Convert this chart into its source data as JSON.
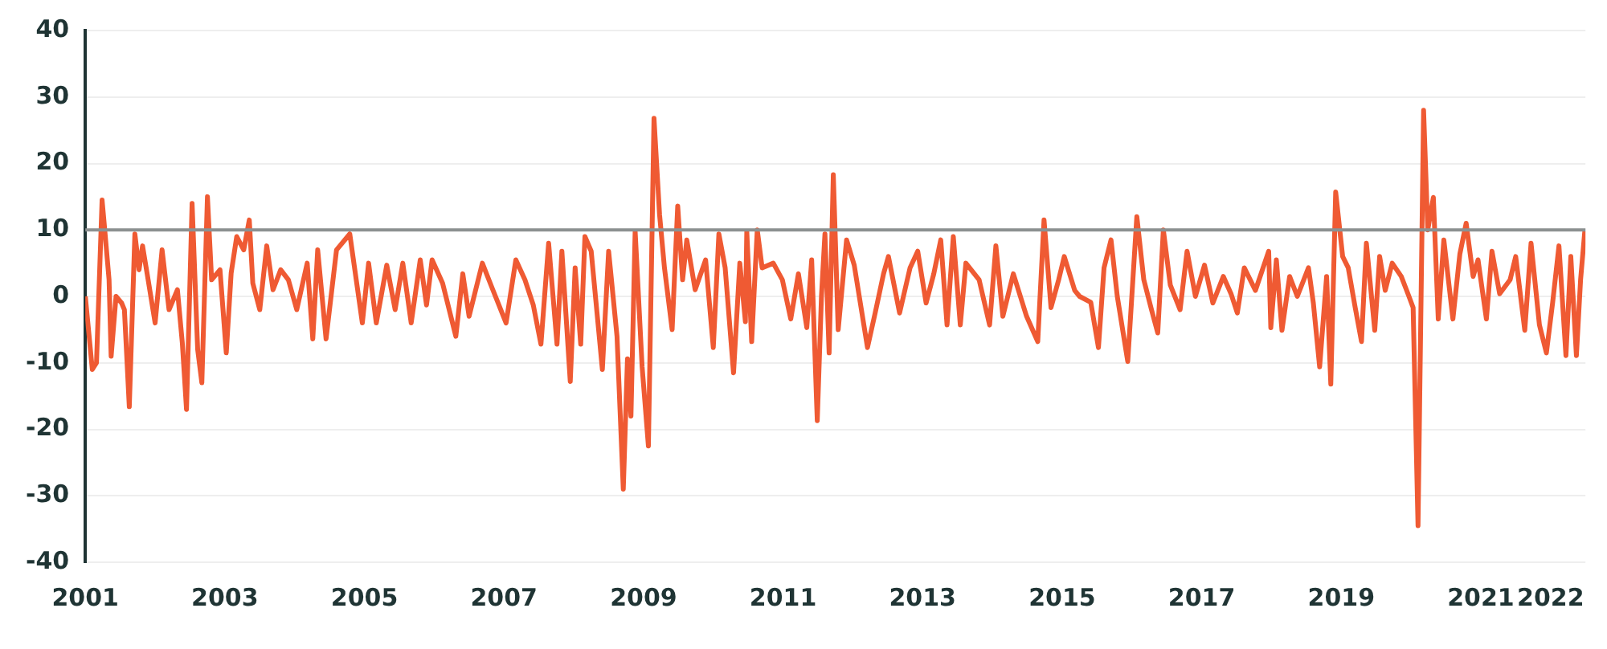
{
  "chart_data": {
    "type": "line",
    "series": [
      {
        "color": "#ef5a33",
        "x": [
          2001.0,
          2001.1,
          2001.16,
          2001.24,
          2001.27,
          2001.34,
          2001.37,
          2001.44,
          2001.52,
          2001.56,
          2001.63,
          2001.71,
          2001.77,
          2001.82,
          2001.9,
          2002.0,
          2002.1,
          2002.2,
          2002.32,
          2002.39,
          2002.45,
          2002.53,
          2002.61,
          2002.67,
          2002.75,
          2002.81,
          2002.93,
          2003.02,
          2003.09,
          2003.17,
          2003.27,
          2003.35,
          2003.4,
          2003.5,
          2003.6,
          2003.69,
          2003.8,
          2003.91,
          2004.03,
          2004.18,
          2004.26,
          2004.33,
          2004.45,
          2004.6,
          2004.79,
          2004.97,
          2005.06,
          2005.17,
          2005.32,
          2005.44,
          2005.55,
          2005.67,
          2005.8,
          2005.89,
          2005.97,
          2006.12,
          2006.31,
          2006.41,
          2006.5,
          2006.69,
          2006.84,
          2007.03,
          2007.17,
          2007.3,
          2007.42,
          2007.53,
          2007.64,
          2007.76,
          2007.83,
          2007.95,
          2008.02,
          2008.1,
          2008.16,
          2008.25,
          2008.41,
          2008.5,
          2008.62,
          2008.71,
          2008.77,
          2008.82,
          2008.88,
          2008.98,
          2009.07,
          2009.15,
          2009.23,
          2009.3,
          2009.41,
          2009.49,
          2009.56,
          2009.62,
          2009.74,
          2009.89,
          2010.0,
          2010.08,
          2010.17,
          2010.29,
          2010.38,
          2010.46,
          2010.48,
          2010.55,
          2010.63,
          2010.7,
          2010.86,
          2010.99,
          2011.11,
          2011.22,
          2011.34,
          2011.41,
          2011.49,
          2011.55,
          2011.6,
          2011.66,
          2011.72,
          2011.79,
          2011.91,
          2012.02,
          2012.21,
          2012.32,
          2012.44,
          2012.51,
          2012.67,
          2012.82,
          2012.93,
          2013.05,
          2013.16,
          2013.26,
          2013.35,
          2013.44,
          2013.54,
          2013.62,
          2013.81,
          2013.96,
          2014.05,
          2014.15,
          2014.3,
          2014.49,
          2014.65,
          2014.74,
          2014.84,
          2014.95,
          2015.03,
          2015.18,
          2015.25,
          2015.41,
          2015.52,
          2015.6,
          2015.7,
          2015.79,
          2015.94,
          2016.07,
          2016.17,
          2016.28,
          2016.37,
          2016.45,
          2016.55,
          2016.69,
          2016.79,
          2016.91,
          2017.04,
          2017.16,
          2017.31,
          2017.42,
          2017.51,
          2017.61,
          2017.77,
          2017.96,
          2017.99,
          2018.07,
          2018.15,
          2018.26,
          2018.37,
          2018.53,
          2018.6,
          2018.69,
          2018.79,
          2018.85,
          2018.92,
          2019.02,
          2019.1,
          2019.2,
          2019.29,
          2019.36,
          2019.48,
          2019.55,
          2019.63,
          2019.73,
          2019.86,
          2019.97,
          2020.03,
          2020.1,
          2020.18,
          2020.24,
          2020.32,
          2020.39,
          2020.47,
          2020.6,
          2020.7,
          2020.79,
          2020.89,
          2020.96,
          2021.08,
          2021.16,
          2021.27,
          2021.42,
          2021.5,
          2021.63,
          2021.72,
          2021.84,
          2021.94,
          2022.03,
          2022.12,
          2022.22,
          2022.29,
          2022.37,
          2022.43,
          2022.49
        ],
        "values": [
          0,
          -11,
          -10,
          14.5,
          11,
          2.5,
          -9,
          0,
          -1,
          -2,
          -16.6,
          9.4,
          4,
          7.6,
          2.5,
          -4,
          7,
          -2,
          1,
          -7,
          -17,
          14,
          -8,
          -13,
          15,
          2.5,
          4,
          -8.5,
          3.5,
          9,
          7,
          11.5,
          2,
          -2,
          7.6,
          1,
          4,
          2.5,
          -2,
          5,
          -6.4,
          7,
          -6.4,
          7,
          9.4,
          -4,
          5,
          -4,
          4.7,
          -2,
          5,
          -4,
          5.5,
          -1.3,
          5.5,
          2,
          -6,
          3.4,
          -3,
          5,
          1,
          -4,
          5.5,
          2.5,
          -1.3,
          -7.2,
          8,
          -7.2,
          6.8,
          -12.8,
          4.3,
          -7.2,
          9,
          6.8,
          -11,
          6.8,
          -6,
          -29,
          -9.4,
          -18,
          9.8,
          -10.6,
          -22.5,
          26.8,
          12.3,
          4.3,
          -5,
          13.6,
          2.5,
          8.5,
          1,
          5.5,
          -7.7,
          9.4,
          4.3,
          -11.5,
          5,
          -3.8,
          9.8,
          -6.8,
          10,
          4.3,
          5,
          2.5,
          -3.4,
          3.4,
          -4.7,
          5.5,
          -18.7,
          0,
          9.4,
          -8.5,
          18.3,
          -5,
          8.5,
          4.7,
          -7.7,
          -2.5,
          3.4,
          6,
          -2.5,
          4.3,
          6.8,
          -1,
          3.4,
          8.5,
          -4.3,
          9,
          -4.3,
          5,
          2.5,
          -4.3,
          7.6,
          -3,
          3.4,
          -3,
          -6.8,
          11.5,
          -1.7,
          2.5,
          6,
          0.9,
          0,
          -0.9,
          -7.7,
          4.3,
          8.5,
          0,
          -9.8,
          12,
          2.5,
          -2,
          -5.5,
          10,
          1.7,
          -2,
          6.8,
          0,
          4.7,
          -1,
          3,
          0.4,
          -2.5,
          4.3,
          0.9,
          6.8,
          -4.7,
          5.5,
          -5.1,
          3,
          0,
          4.3,
          -1,
          -10.6,
          3,
          -13.2,
          15.7,
          6,
          4.3,
          -1.7,
          -6.8,
          8,
          -5.1,
          6,
          0.9,
          5,
          3,
          0,
          -1.7,
          -34.5,
          28,
          10,
          14.9,
          -3.4,
          8.5,
          -3.4,
          6.4,
          11,
          3,
          5.5,
          -3.4,
          6.8,
          0.4,
          2.5,
          6,
          -5.1,
          8,
          -4.3,
          -8.5,
          -0.9,
          7.6,
          -8.9,
          6,
          -8.9,
          2.5,
          9.8
        ]
      }
    ],
    "xlim": [
      2001,
      2022.5
    ],
    "xticks": [
      2001,
      2003,
      2005,
      2007,
      2009,
      2011,
      2013,
      2015,
      2017,
      2019,
      2021,
      2022
    ],
    "ylim": [
      -40,
      40
    ],
    "yticks": [
      -40,
      -30,
      -20,
      -10,
      0,
      10,
      20,
      30,
      40
    ],
    "grid": "y",
    "legend": false,
    "ref_lines": [
      {
        "axis": "y",
        "value": 10,
        "color": "#8c9191"
      }
    ]
  }
}
